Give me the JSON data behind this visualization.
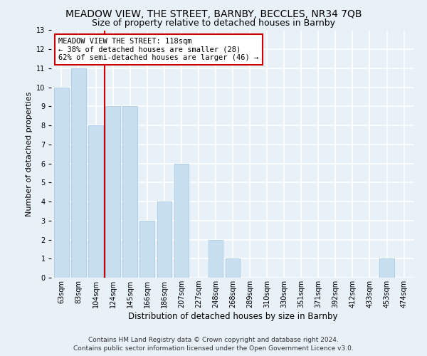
{
  "title": "MEADOW VIEW, THE STREET, BARNBY, BECCLES, NR34 7QB",
  "subtitle": "Size of property relative to detached houses in Barnby",
  "xlabel": "Distribution of detached houses by size in Barnby",
  "ylabel": "Number of detached properties",
  "categories": [
    "63sqm",
    "83sqm",
    "104sqm",
    "124sqm",
    "145sqm",
    "166sqm",
    "186sqm",
    "207sqm",
    "227sqm",
    "248sqm",
    "268sqm",
    "289sqm",
    "310sqm",
    "330sqm",
    "351sqm",
    "371sqm",
    "392sqm",
    "412sqm",
    "433sqm",
    "453sqm",
    "474sqm"
  ],
  "values": [
    10,
    11,
    8,
    9,
    9,
    3,
    4,
    6,
    0,
    2,
    1,
    0,
    0,
    0,
    0,
    0,
    0,
    0,
    0,
    1,
    0
  ],
  "bar_color": "#c8dff0",
  "bar_edgecolor": "#a8c8e8",
  "vline_color": "#cc0000",
  "vline_x": 2.5,
  "ylim": [
    0,
    13
  ],
  "yticks": [
    0,
    1,
    2,
    3,
    4,
    5,
    6,
    7,
    8,
    9,
    10,
    11,
    12,
    13
  ],
  "annotation_title": "MEADOW VIEW THE STREET: 118sqm",
  "annotation_line1": "← 38% of detached houses are smaller (28)",
  "annotation_line2": "62% of semi-detached houses are larger (46) →",
  "annotation_box_facecolor": "#ffffff",
  "annotation_box_edgecolor": "#cc0000",
  "background_color": "#e8f0f8",
  "grid_color": "#d0dce8",
  "footer1": "Contains HM Land Registry data © Crown copyright and database right 2024.",
  "footer2": "Contains public sector information licensed under the Open Government Licence v3.0.",
  "title_fontsize": 10,
  "subtitle_fontsize": 9,
  "xlabel_fontsize": 8.5,
  "ylabel_fontsize": 8,
  "tick_fontsize": 7,
  "ann_fontsize": 7.5,
  "footer_fontsize": 6.5
}
